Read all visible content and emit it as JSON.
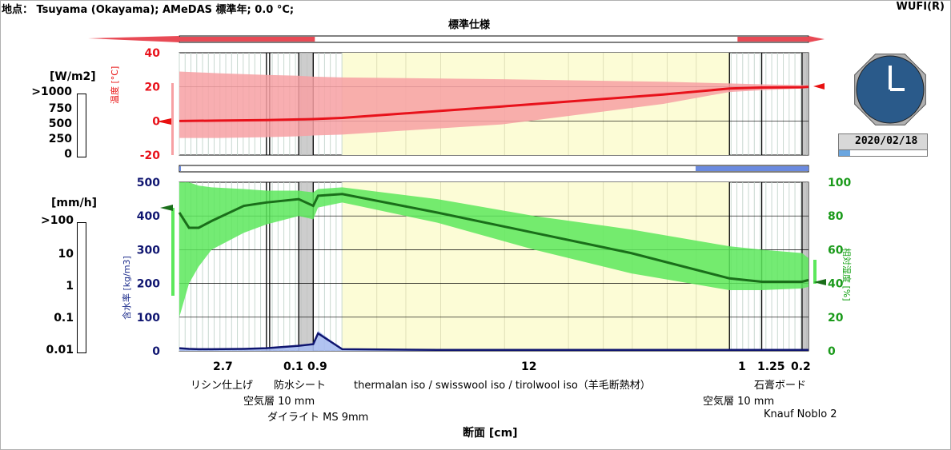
{
  "header": {
    "location": "地点： Tsuyama (Okayama); AMeDAS 標準年; 0.0 °C;",
    "brand": "WUFI(R)",
    "assembly_title": "標準仕様"
  },
  "clock": {
    "date": "2020/02/18",
    "progress": 0.13
  },
  "colors": {
    "temperature": "#e8121b",
    "temperature_band": "#f7a0a3",
    "rh": "#1a6e1a",
    "rh_band": "#5ce85c",
    "water_content": "#0f1570",
    "water_band": "#a9bdf0",
    "insulation_bg": "#fcfcd6",
    "clock_face": "#2a5a8a"
  },
  "left_scales": {
    "radiation": {
      "unit": "[W/m2]",
      "ticks": [
        ">1000",
        "750",
        "500",
        "250",
        "0"
      ]
    },
    "rain": {
      "unit": "[mm/h]",
      "ticks": [
        ">100",
        "10",
        "1",
        "0.1",
        "0.01"
      ]
    }
  },
  "chart_data": [
    {
      "type": "line",
      "title": "",
      "xlabel": "断面 [cm]",
      "ylabel": "温度 [°C]",
      "ylim": [
        -20,
        40
      ],
      "yticks": [
        "40",
        "20",
        "0",
        "-20"
      ],
      "grid": true,
      "x": [
        0,
        1.2,
        2.7,
        3.7,
        4.15,
        5.05,
        10.0,
        15.0,
        17.05,
        18.05,
        19.3,
        19.5
      ],
      "series": [
        {
          "values": [
            0.0,
            0.2,
            0.5,
            0.9,
            1.1,
            1.8,
            8.5,
            15.5,
            19.0,
            19.6,
            19.8,
            20.0
          ]
        }
      ],
      "band_upper": [
        29,
        28,
        27,
        26.5,
        26,
        25.5,
        24.5,
        23,
        22,
        21.5,
        21,
        21
      ],
      "band_lower": [
        -10,
        -10,
        -9.5,
        -9,
        -8.5,
        -8,
        -2,
        10,
        17,
        18,
        19,
        19.5
      ]
    },
    {
      "type": "line",
      "title": "",
      "xlabel": "断面 [cm]",
      "ylabel": "含水率 [kg/m3]",
      "y2label": "相対湿度 [%]",
      "ylim": [
        0,
        500
      ],
      "y2lim": [
        0,
        100
      ],
      "yticks": [
        "500",
        "400",
        "300",
        "200",
        "100",
        "0"
      ],
      "y2ticks": [
        "100",
        "80",
        "60",
        "40",
        "20",
        "0"
      ],
      "grid": true,
      "x": [
        0,
        0.3,
        0.6,
        1.0,
        2.0,
        2.7,
        3.7,
        4.15,
        4.3,
        5.05,
        8.0,
        11.0,
        14.0,
        17.05,
        18.05,
        19.3,
        19.5
      ],
      "series": [
        {
          "name": "",
          "axis": "y2",
          "values": [
            82,
            73,
            73,
            77,
            86,
            88,
            90,
            86,
            92,
            93,
            82,
            70,
            58,
            43,
            41,
            41,
            42
          ]
        },
        {
          "name": "",
          "axis": "y",
          "values": [
            8,
            6,
            5,
            5,
            6,
            8,
            15,
            20,
            52,
            5,
            3,
            3,
            3,
            3,
            3,
            3,
            3
          ]
        }
      ]
    }
  ],
  "layers": [
    {
      "thickness": "2.7",
      "name": "リシン仕上げ"
    },
    {
      "thickness": "0.1",
      "name": "空気層 10 mm"
    },
    {
      "thickness": "0.1",
      "name": "防水シート"
    },
    {
      "thickness": "0.9",
      "name": "ダイライト MS 9mm"
    },
    {
      "thickness": "12",
      "name": "thermalan iso / swisswool iso / tirolwool iso（羊毛断熱材）"
    },
    {
      "thickness": "1",
      "name": "空気層 10 mm"
    },
    {
      "thickness": "1.25",
      "name": "石膏ボード"
    },
    {
      "thickness": "0.2",
      "name": "Knauf Noblo 2"
    }
  ],
  "thickness_labels": [
    "2.7",
    "0.1",
    "0.9",
    "12",
    "1",
    "1.25",
    "0.2"
  ],
  "layer_label_text": {
    "l1": "リシン仕上げ",
    "l2": "防水シート",
    "l3": "空気層 10 mm",
    "l4": "ダイライト MS 9mm",
    "l5": "thermalan iso / swisswool iso / tirolwool iso（羊毛断熱材）",
    "l6": "石膏ボード",
    "l7": "空気層 10 mm",
    "l8": "Knauf Noblo 2"
  }
}
